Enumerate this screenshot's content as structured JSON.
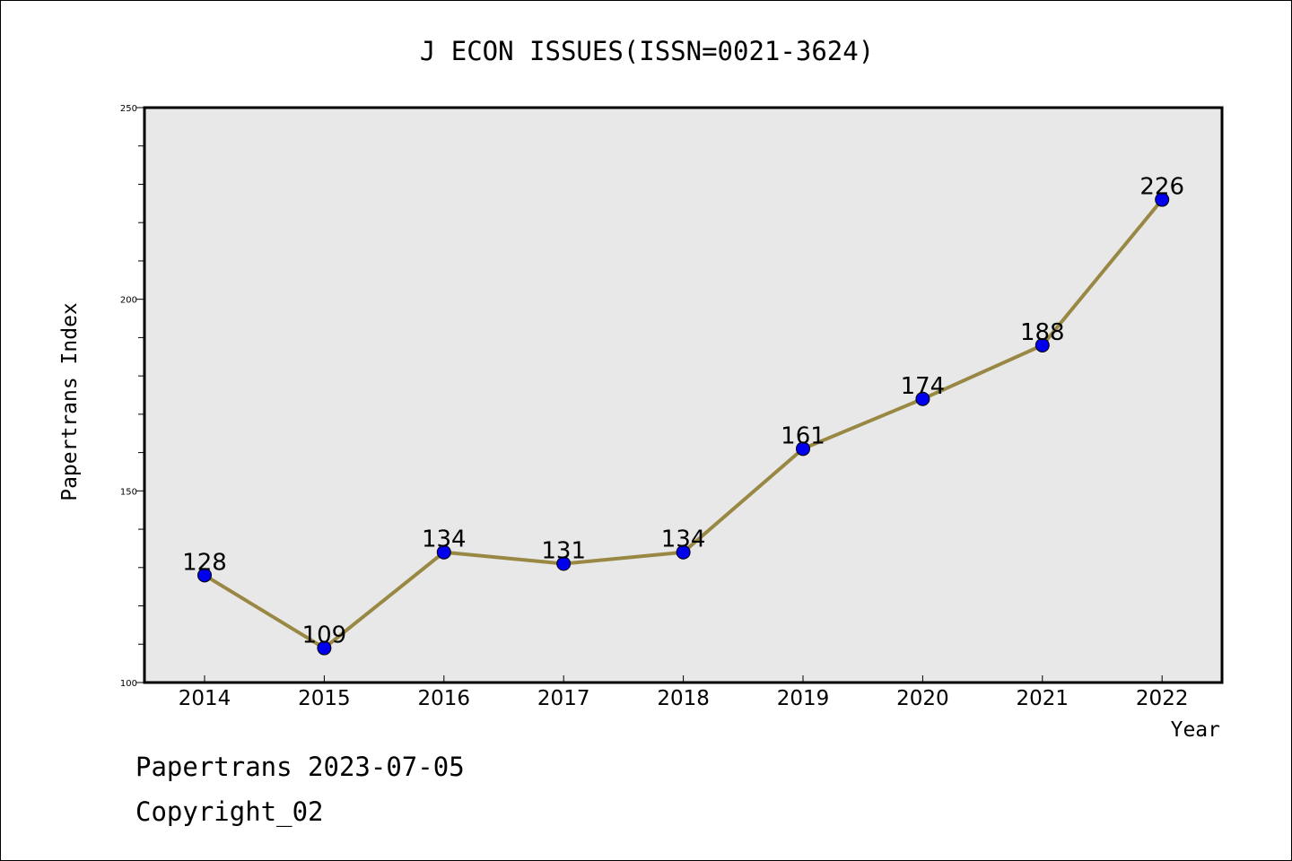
{
  "chart_data": {
    "type": "line",
    "title": "J ECON ISSUES(ISSN=0021-3624)",
    "xlabel": "Year",
    "ylabel": "Papertrans Index",
    "x": [
      "2014",
      "2015",
      "2016",
      "2017",
      "2018",
      "2019",
      "2020",
      "2021",
      "2022"
    ],
    "series": [
      {
        "values": [
          128,
          109,
          134,
          131,
          134,
          161,
          174,
          188,
          226
        ],
        "color": "#998844"
      }
    ],
    "marker_color": "#0000ee",
    "ylim": [
      100,
      250
    ],
    "yticks": [
      100,
      150,
      200,
      250
    ],
    "ytick_labels": [
      "100",
      "150",
      "200",
      "250"
    ],
    "grid": false,
    "plot_background": "#e8e8e8",
    "legend": "none"
  },
  "footer": {
    "line1": "Papertrans 2023-07-05",
    "line2": "Copyright_02"
  }
}
